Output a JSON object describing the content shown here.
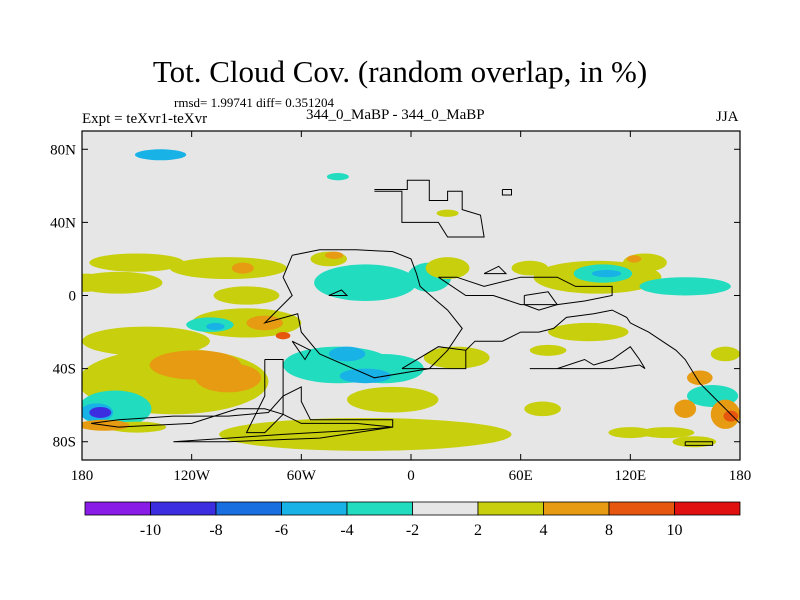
{
  "title": "Tot. Cloud Cov. (random overlap, in %)",
  "stats_line": "rmsd= 1.99741 diff= 0.351204",
  "expt_label": "Expt = teXvr1-teXvr",
  "case_label": "344_0_MaBP - 344_0_MaBP",
  "season_label": "JJA",
  "chart_data": {
    "type": "heatmap",
    "title": "Tot. Cloud Cov. (random overlap, in %)",
    "xlabel": "",
    "ylabel": "",
    "xlim": [
      -180,
      180
    ],
    "ylim": [
      -90,
      90
    ],
    "x_ticks": [
      {
        "value": -180,
        "label": "180"
      },
      {
        "value": -120,
        "label": "120W"
      },
      {
        "value": -60,
        "label": "60W"
      },
      {
        "value": 0,
        "label": "0"
      },
      {
        "value": 60,
        "label": "60E"
      },
      {
        "value": 120,
        "label": "120E"
      },
      {
        "value": 180,
        "label": "180"
      }
    ],
    "y_ticks": [
      {
        "value": 80,
        "label": "80N"
      },
      {
        "value": 40,
        "label": "40N"
      },
      {
        "value": 0,
        "label": "0"
      },
      {
        "value": -40,
        "label": "40S"
      },
      {
        "value": -80,
        "label": "80S"
      }
    ],
    "colorbar": {
      "levels": [
        "-10",
        "-8",
        "-6",
        "-4",
        "-2",
        "2",
        "4",
        "8",
        "10"
      ],
      "colors": [
        "#8a1ce8",
        "#3c2ee0",
        "#1a6fe0",
        "#19b2e6",
        "#22dcc0",
        "#e6e6e6",
        "#c8cf0c",
        "#e69b12",
        "#e6560f",
        "#e01010"
      ]
    },
    "anomalies": [
      {
        "lon": -137,
        "lat": 77,
        "rx": 14,
        "ry": 3,
        "value": -4
      },
      {
        "lon": -178,
        "lat": 7,
        "rx": 12,
        "ry": 5,
        "value": 3
      },
      {
        "lon": -150,
        "lat": 18,
        "rx": 26,
        "ry": 5,
        "value": 3
      },
      {
        "lon": -100,
        "lat": 15,
        "rx": 32,
        "ry": 6,
        "value": 3
      },
      {
        "lon": -92,
        "lat": 15,
        "rx": 6,
        "ry": 3,
        "value": 5
      },
      {
        "lon": -160,
        "lat": 7,
        "rx": 24,
        "ry": 6,
        "value": 3
      },
      {
        "lon": -90,
        "lat": 0,
        "rx": 18,
        "ry": 5,
        "value": 3
      },
      {
        "lon": -130,
        "lat": -47,
        "rx": 52,
        "ry": 18,
        "value": 3
      },
      {
        "lon": -118,
        "lat": -38,
        "rx": 25,
        "ry": 8,
        "value": 5
      },
      {
        "lon": -100,
        "lat": -45,
        "rx": 18,
        "ry": 8,
        "value": 5
      },
      {
        "lon": -145,
        "lat": -25,
        "rx": 35,
        "ry": 8,
        "value": 3
      },
      {
        "lon": -90,
        "lat": -15,
        "rx": 30,
        "ry": 8,
        "value": 3
      },
      {
        "lon": -80,
        "lat": -15,
        "rx": 10,
        "ry": 4,
        "value": 5
      },
      {
        "lon": -110,
        "lat": -16,
        "rx": 13,
        "ry": 4,
        "value": -3
      },
      {
        "lon": -107,
        "lat": -17,
        "rx": 5,
        "ry": 2,
        "value": -5
      },
      {
        "lon": -70,
        "lat": -22,
        "rx": 4,
        "ry": 2,
        "value": 9
      },
      {
        "lon": -40,
        "lat": -38,
        "rx": 30,
        "ry": 10,
        "value": -3
      },
      {
        "lon": -15,
        "lat": -40,
        "rx": 22,
        "ry": 8,
        "value": -3
      },
      {
        "lon": -25,
        "lat": -44,
        "rx": 14,
        "ry": 4,
        "value": -5
      },
      {
        "lon": -35,
        "lat": -32,
        "rx": 10,
        "ry": 4,
        "value": -5
      },
      {
        "lon": -10,
        "lat": -57,
        "rx": 25,
        "ry": 7,
        "value": 3
      },
      {
        "lon": 25,
        "lat": -34,
        "rx": 18,
        "ry": 6,
        "value": 3
      },
      {
        "lon": -25,
        "lat": -76,
        "rx": 80,
        "ry": 9,
        "value": 3
      },
      {
        "lon": -162,
        "lat": -62,
        "rx": 20,
        "ry": 10,
        "value": -3
      },
      {
        "lon": -172,
        "lat": -64,
        "rx": 9,
        "ry": 5,
        "value": -5
      },
      {
        "lon": -170,
        "lat": -64,
        "rx": 6,
        "ry": 3,
        "value": -9
      },
      {
        "lon": -168,
        "lat": -71,
        "rx": 14,
        "ry": 3,
        "value": 5
      },
      {
        "lon": -150,
        "lat": -72,
        "rx": 16,
        "ry": 3,
        "value": 3
      },
      {
        "lon": -25,
        "lat": 7,
        "rx": 28,
        "ry": 10,
        "value": -3
      },
      {
        "lon": 10,
        "lat": 10,
        "rx": 12,
        "ry": 8,
        "value": -3
      },
      {
        "lon": 20,
        "lat": 15,
        "rx": 12,
        "ry": 6,
        "value": 3
      },
      {
        "lon": -45,
        "lat": 20,
        "rx": 10,
        "ry": 4,
        "value": 3
      },
      {
        "lon": -42,
        "lat": 22,
        "rx": 5,
        "ry": 2,
        "value": 5
      },
      {
        "lon": 65,
        "lat": 15,
        "rx": 10,
        "ry": 4,
        "value": 3
      },
      {
        "lon": 102,
        "lat": 10,
        "rx": 35,
        "ry": 9,
        "value": 3
      },
      {
        "lon": 105,
        "lat": 12,
        "rx": 16,
        "ry": 5,
        "value": -3
      },
      {
        "lon": 107,
        "lat": 12,
        "rx": 8,
        "ry": 2,
        "value": -5
      },
      {
        "lon": 128,
        "lat": 18,
        "rx": 12,
        "ry": 5,
        "value": 3
      },
      {
        "lon": 122,
        "lat": 20,
        "rx": 4,
        "ry": 2,
        "value": 5
      },
      {
        "lon": 150,
        "lat": 5,
        "rx": 25,
        "ry": 5,
        "value": -3
      },
      {
        "lon": 97,
        "lat": -20,
        "rx": 22,
        "ry": 5,
        "value": 3
      },
      {
        "lon": 75,
        "lat": -30,
        "rx": 10,
        "ry": 3,
        "value": 3
      },
      {
        "lon": 172,
        "lat": -32,
        "rx": 8,
        "ry": 4,
        "value": 3
      },
      {
        "lon": 158,
        "lat": -45,
        "rx": 7,
        "ry": 4,
        "value": 5
      },
      {
        "lon": 165,
        "lat": -55,
        "rx": 14,
        "ry": 6,
        "value": -3
      },
      {
        "lon": 172,
        "lat": -65,
        "rx": 8,
        "ry": 8,
        "value": 5
      },
      {
        "lon": 175,
        "lat": -66,
        "rx": 4,
        "ry": 3,
        "value": 9
      },
      {
        "lon": 150,
        "lat": -62,
        "rx": 6,
        "ry": 5,
        "value": 5
      },
      {
        "lon": 140,
        "lat": -75,
        "rx": 15,
        "ry": 3,
        "value": 3
      },
      {
        "lon": 120,
        "lat": -75,
        "rx": 12,
        "ry": 3,
        "value": 3
      },
      {
        "lon": 72,
        "lat": -62,
        "rx": 10,
        "ry": 4,
        "value": 3
      },
      {
        "lon": 20,
        "lat": 45,
        "rx": 6,
        "ry": 2,
        "value": 3
      },
      {
        "lon": -40,
        "lat": 65,
        "rx": 6,
        "ry": 2,
        "value": -3
      },
      {
        "lon": 155,
        "lat": -80,
        "rx": 12,
        "ry": 3,
        "value": 3
      }
    ],
    "coastline": [
      [
        [
          -20,
          57
        ],
        [
          -5,
          57
        ],
        [
          -5,
          40
        ],
        [
          15,
          40
        ],
        [
          20,
          32
        ],
        [
          40,
          32
        ],
        [
          38,
          44
        ],
        [
          28,
          47
        ],
        [
          28,
          57
        ],
        [
          20,
          57
        ],
        [
          20,
          52
        ],
        [
          10,
          52
        ],
        [
          10,
          63
        ],
        [
          -2,
          63
        ],
        [
          -2,
          58
        ],
        [
          -20,
          58
        ]
      ],
      [
        [
          -65,
          22
        ],
        [
          -50,
          25
        ],
        [
          -30,
          25
        ],
        [
          -10,
          24
        ],
        [
          0,
          20
        ],
        [
          3,
          12
        ],
        [
          5,
          5
        ],
        [
          13,
          -2
        ],
        [
          20,
          -8
        ],
        [
          28,
          -18
        ],
        [
          20,
          -30
        ],
        [
          10,
          -40
        ],
        [
          -20,
          -45
        ],
        [
          -50,
          -32
        ],
        [
          -60,
          -20
        ],
        [
          -62,
          -10
        ],
        [
          -80,
          -15
        ],
        [
          -65,
          0
        ],
        [
          -70,
          10
        ],
        [
          -65,
          22
        ]
      ],
      [
        [
          -80,
          -35
        ],
        [
          -70,
          -35
        ],
        [
          -70,
          -65
        ],
        [
          -80,
          -75
        ],
        [
          -90,
          -75
        ],
        [
          -80,
          -55
        ],
        [
          -80,
          -35
        ]
      ],
      [
        [
          -175,
          -70
        ],
        [
          -160,
          -72
        ],
        [
          -120,
          -70
        ],
        [
          -95,
          -62
        ],
        [
          -80,
          -62
        ],
        [
          -70,
          -65
        ],
        [
          -60,
          -70
        ],
        [
          -30,
          -70
        ],
        [
          -10,
          -72
        ],
        [
          -10,
          -68
        ],
        [
          -55,
          -68
        ],
        [
          -60,
          -58
        ],
        [
          -60,
          -50
        ],
        [
          -70,
          -55
        ],
        [
          -78,
          -64
        ],
        [
          -100,
          -66
        ],
        [
          -130,
          -66
        ],
        [
          -160,
          -68
        ],
        [
          -175,
          -70
        ]
      ],
      [
        [
          -130,
          -80
        ],
        [
          -100,
          -78
        ],
        [
          -70,
          -76
        ],
        [
          -35,
          -74
        ],
        [
          -10,
          -72
        ],
        [
          -50,
          -78
        ],
        [
          -100,
          -80
        ],
        [
          -130,
          -80
        ]
      ],
      [
        [
          15,
          10
        ],
        [
          25,
          10
        ],
        [
          40,
          5
        ],
        [
          60,
          10
        ],
        [
          80,
          10
        ],
        [
          90,
          5
        ],
        [
          100,
          5
        ],
        [
          110,
          5
        ],
        [
          110,
          0
        ],
        [
          95,
          -3
        ],
        [
          80,
          -5
        ],
        [
          60,
          -5
        ],
        [
          45,
          0
        ],
        [
          30,
          0
        ],
        [
          15,
          10
        ]
      ],
      [
        [
          40,
          12
        ],
        [
          48,
          16
        ],
        [
          52,
          12
        ],
        [
          40,
          12
        ]
      ],
      [
        [
          62,
          0
        ],
        [
          75,
          2
        ],
        [
          80,
          -5
        ],
        [
          70,
          -8
        ],
        [
          62,
          -5
        ],
        [
          62,
          0
        ]
      ],
      [
        [
          30,
          -30
        ],
        [
          35,
          -25
        ],
        [
          50,
          -25
        ],
        [
          60,
          -20
        ],
        [
          70,
          -20
        ],
        [
          78,
          -18
        ],
        [
          85,
          -12
        ],
        [
          100,
          -10
        ],
        [
          110,
          -8
        ],
        [
          118,
          -12
        ],
        [
          120,
          -15
        ],
        [
          130,
          -20
        ],
        [
          145,
          -30
        ],
        [
          150,
          -35
        ],
        [
          158,
          -48
        ],
        [
          165,
          -55
        ],
        [
          172,
          -62
        ],
        [
          178,
          -68
        ],
        [
          180,
          -70
        ]
      ],
      [
        [
          -5,
          -40
        ],
        [
          30,
          -40
        ],
        [
          30,
          -30
        ],
        [
          15,
          -28
        ],
        [
          -5,
          -40
        ]
      ],
      [
        [
          65,
          -40
        ],
        [
          80,
          -40
        ],
        [
          95,
          -35
        ],
        [
          100,
          -38
        ],
        [
          110,
          -35
        ],
        [
          120,
          -28
        ],
        [
          125,
          -35
        ],
        [
          128,
          -40
        ],
        [
          125,
          -38
        ],
        [
          110,
          -40
        ],
        [
          95,
          -40
        ],
        [
          65,
          -40
        ]
      ],
      [
        [
          -45,
          0
        ],
        [
          -38,
          3
        ],
        [
          -35,
          0
        ],
        [
          -45,
          0
        ]
      ],
      [
        [
          50,
          58
        ],
        [
          55,
          58
        ],
        [
          55,
          55
        ],
        [
          50,
          55
        ],
        [
          50,
          58
        ]
      ],
      [
        [
          150,
          -80
        ],
        [
          165,
          -80
        ],
        [
          165,
          -82
        ],
        [
          150,
          -82
        ],
        [
          150,
          -80
        ]
      ],
      [
        [
          -65,
          -25
        ],
        [
          -55,
          -30
        ],
        [
          -58,
          -35
        ],
        [
          -65,
          -25
        ]
      ]
    ]
  }
}
